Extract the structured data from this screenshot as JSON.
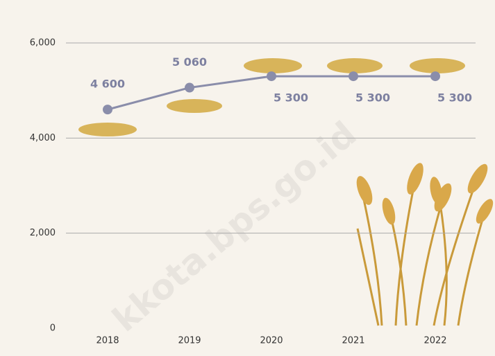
{
  "chart_data": {
    "type": "line",
    "categories": [
      "2018",
      "2019",
      "2020",
      "2021",
      "2022"
    ],
    "series": [
      {
        "name": null,
        "color": "#8a8daa",
        "values": [
          4600,
          5060,
          5300,
          5300,
          5300
        ],
        "value_labels": [
          "4 600",
          "5 060",
          "5 300",
          "5 300",
          "5 300"
        ]
      }
    ],
    "ylim": [
      0,
      6000
    ],
    "yticks": [
      0,
      {
        "value": 2000,
        "label": "2,000"
      },
      {
        "value": 4000,
        "label": "4,000"
      },
      {
        "value": 6000,
        "label": "6,000"
      }
    ],
    "grid": true,
    "watermark": "kkota.bps.go.id"
  }
}
